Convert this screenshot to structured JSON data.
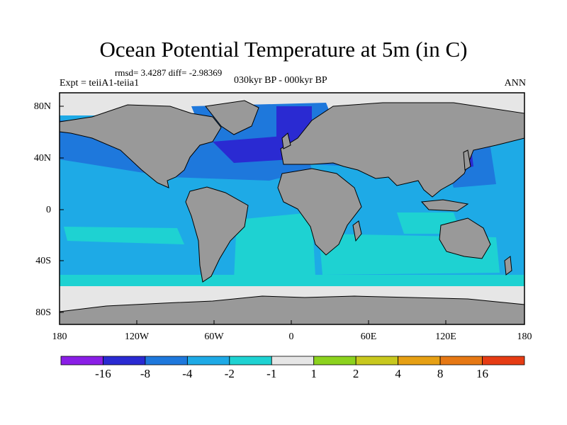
{
  "title": "Ocean Potential Temperature at 5m (in C)",
  "stats": "rmsd= 3.4287 diff= -2.98369",
  "experiment": "Expt = teiiA1-teiia1",
  "period": "030kyr BP - 000kyr BP",
  "season": "ANN",
  "latitude_labels": [
    "80N",
    "40N",
    "0",
    "40S",
    "80S"
  ],
  "longitude_labels": [
    "180",
    "120W",
    "60W",
    "0",
    "60E",
    "120E",
    "180"
  ],
  "colorbar": {
    "colors": [
      "#8a1ee6",
      "#2a2ad2",
      "#1e78dc",
      "#1eaae6",
      "#1ed2d2",
      "#e6e6e6",
      "#8cd21e",
      "#c8c81e",
      "#e6a014",
      "#e67814",
      "#e63c14"
    ],
    "labels": [
      "-16",
      "-8",
      "-4",
      "-2",
      "-1",
      "1",
      "2",
      "4",
      "8",
      "16"
    ]
  },
  "map_colors": {
    "land": "#999999",
    "ocean_base": "#1eaae6",
    "no_change": "#e6e6e6"
  }
}
